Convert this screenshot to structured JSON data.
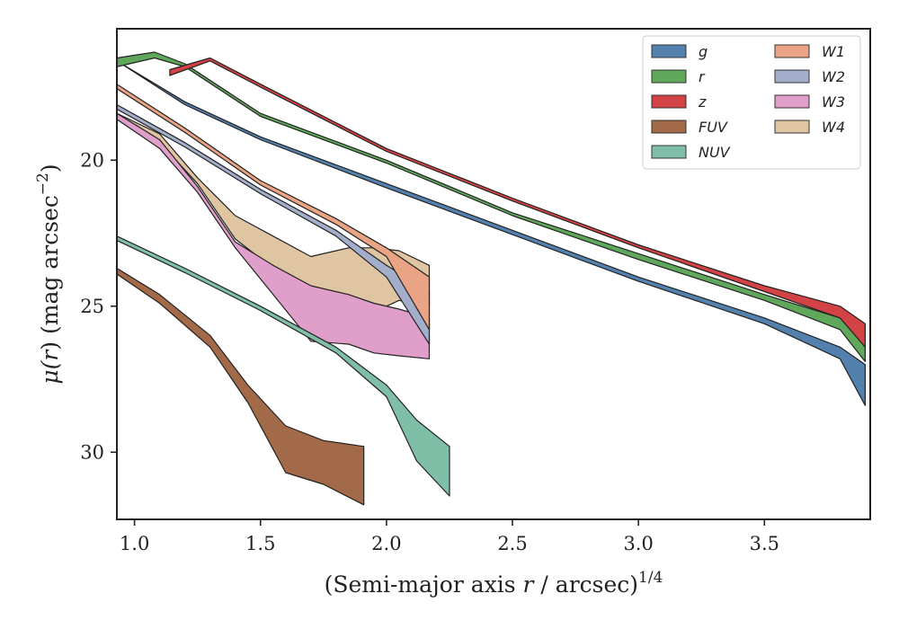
{
  "chart_data": {
    "type": "area",
    "xlabel": "(Semi-major axis r / arcsec)^1/4",
    "xlabel_prefix": "(Semi-major axis ",
    "xlabel_var": "r",
    "xlabel_suffix": " / arcsec)",
    "xlabel_power": "1/4",
    "ylabel": "μ(r) (mag arcsec^−2)",
    "ylabel_mu": "μ(",
    "ylabel_var": "r",
    "ylabel_rest": ") (mag arcsec",
    "ylabel_power": "−2",
    "ylabel_close": ")",
    "xlim": [
      0.93,
      3.92
    ],
    "ylim": [
      32.3,
      15.5
    ],
    "y_inverted": true,
    "grid": false,
    "legend_position": "top-right",
    "legend_columns": 2,
    "xticks": [
      1.0,
      1.5,
      2.0,
      2.5,
      3.0,
      3.5
    ],
    "xtick_labels": [
      "1.0",
      "1.5",
      "2.0",
      "2.5",
      "3.0",
      "3.5"
    ],
    "yticks": [
      20,
      25,
      30
    ],
    "ytick_labels": [
      "20",
      "25",
      "30"
    ],
    "series": [
      {
        "name": "W4",
        "color": "#dfc5a2",
        "upper": [
          [
            0.93,
            18.4
          ],
          [
            1.1,
            19.1
          ],
          [
            1.25,
            20.6
          ],
          [
            1.4,
            21.9
          ],
          [
            1.55,
            22.6
          ],
          [
            1.7,
            23.3
          ],
          [
            1.85,
            23.0
          ],
          [
            1.95,
            23.0
          ],
          [
            2.05,
            23.1
          ],
          [
            2.17,
            23.6
          ]
        ],
        "lower": [
          [
            0.93,
            18.6
          ],
          [
            1.1,
            19.4
          ],
          [
            1.25,
            20.8
          ],
          [
            1.4,
            22.7
          ],
          [
            1.55,
            23.7
          ],
          [
            1.7,
            24.4
          ],
          [
            1.85,
            24.6
          ],
          [
            1.95,
            25.2
          ],
          [
            2.05,
            24.8
          ],
          [
            2.17,
            25.0
          ]
        ]
      },
      {
        "name": "W3",
        "color": "#e09fca",
        "upper": [
          [
            0.93,
            18.4
          ],
          [
            1.1,
            19.3
          ],
          [
            1.25,
            20.9
          ],
          [
            1.4,
            22.8
          ],
          [
            1.55,
            23.6
          ],
          [
            1.7,
            24.3
          ],
          [
            1.85,
            24.6
          ],
          [
            1.95,
            24.9
          ],
          [
            2.05,
            25.1
          ],
          [
            2.17,
            25.4
          ]
        ],
        "lower": [
          [
            0.93,
            18.6
          ],
          [
            1.1,
            19.6
          ],
          [
            1.25,
            21.1
          ],
          [
            1.4,
            23.0
          ],
          [
            1.55,
            24.6
          ],
          [
            1.7,
            26.2
          ],
          [
            1.85,
            26.3
          ],
          [
            1.95,
            26.6
          ],
          [
            2.05,
            26.7
          ],
          [
            2.17,
            26.8
          ]
        ]
      },
      {
        "name": "W2",
        "color": "#a3aecb",
        "upper": [
          [
            0.93,
            18.1
          ],
          [
            1.2,
            19.4
          ],
          [
            1.5,
            21.0
          ],
          [
            1.8,
            22.4
          ],
          [
            2.0,
            23.6
          ],
          [
            2.17,
            24.5
          ]
        ],
        "lower": [
          [
            0.93,
            18.25
          ],
          [
            1.2,
            19.55
          ],
          [
            1.5,
            21.15
          ],
          [
            1.8,
            22.6
          ],
          [
            2.0,
            24.0
          ],
          [
            2.17,
            26.3
          ]
        ]
      },
      {
        "name": "W1",
        "color": "#e9a385",
        "upper": [
          [
            0.93,
            17.4
          ],
          [
            1.2,
            18.9
          ],
          [
            1.5,
            20.7
          ],
          [
            1.8,
            22.0
          ],
          [
            2.0,
            23.0
          ],
          [
            2.17,
            24.0
          ]
        ],
        "lower": [
          [
            0.93,
            17.55
          ],
          [
            1.2,
            19.05
          ],
          [
            1.5,
            20.85
          ],
          [
            1.8,
            22.2
          ],
          [
            2.0,
            23.3
          ],
          [
            2.17,
            25.8
          ]
        ]
      },
      {
        "name": "NUV",
        "color": "#7fbfa8",
        "upper": [
          [
            0.93,
            22.6
          ],
          [
            1.2,
            23.7
          ],
          [
            1.5,
            25.0
          ],
          [
            1.8,
            26.4
          ],
          [
            2.0,
            27.7
          ],
          [
            2.12,
            28.9
          ],
          [
            2.25,
            29.8
          ]
        ],
        "lower": [
          [
            0.93,
            22.75
          ],
          [
            1.2,
            23.85
          ],
          [
            1.5,
            25.15
          ],
          [
            1.8,
            26.6
          ],
          [
            2.0,
            28.1
          ],
          [
            2.12,
            30.3
          ],
          [
            2.25,
            31.5
          ]
        ]
      },
      {
        "name": "FUV",
        "color": "#a26a48",
        "upper": [
          [
            0.93,
            23.7
          ],
          [
            1.1,
            24.6
          ],
          [
            1.3,
            26.0
          ],
          [
            1.45,
            27.7
          ],
          [
            1.6,
            29.1
          ],
          [
            1.75,
            29.6
          ],
          [
            1.91,
            29.8
          ]
        ],
        "lower": [
          [
            0.93,
            23.9
          ],
          [
            1.1,
            24.9
          ],
          [
            1.3,
            26.4
          ],
          [
            1.45,
            28.3
          ],
          [
            1.6,
            30.7
          ],
          [
            1.75,
            31.1
          ],
          [
            1.91,
            31.8
          ]
        ]
      },
      {
        "name": "g",
        "color": "#5381ad",
        "upper": [
          [
            0.93,
            16.6
          ],
          [
            1.2,
            18.0
          ],
          [
            1.5,
            19.2
          ],
          [
            2.0,
            20.8
          ],
          [
            2.5,
            22.4
          ],
          [
            3.0,
            24.0
          ],
          [
            3.5,
            25.4
          ],
          [
            3.8,
            26.4
          ],
          [
            3.9,
            27.0
          ]
        ],
        "lower": [
          [
            0.93,
            16.6
          ],
          [
            1.2,
            18.1
          ],
          [
            1.5,
            19.3
          ],
          [
            2.0,
            20.95
          ],
          [
            2.5,
            22.55
          ],
          [
            3.0,
            24.15
          ],
          [
            3.5,
            25.6
          ],
          [
            3.8,
            26.8
          ],
          [
            3.9,
            28.4
          ]
        ]
      },
      {
        "name": "r",
        "color": "#5fa85b",
        "upper": [
          [
            0.93,
            16.5
          ],
          [
            1.08,
            16.3
          ],
          [
            1.2,
            16.7
          ],
          [
            1.5,
            18.4
          ],
          [
            2.0,
            20.0
          ],
          [
            2.5,
            21.8
          ],
          [
            3.0,
            23.2
          ],
          [
            3.5,
            24.6
          ],
          [
            3.8,
            25.4
          ],
          [
            3.9,
            25.9
          ]
        ],
        "lower": [
          [
            0.93,
            16.8
          ],
          [
            1.08,
            16.5
          ],
          [
            1.2,
            16.8
          ],
          [
            1.5,
            18.5
          ],
          [
            2.0,
            20.1
          ],
          [
            2.5,
            21.9
          ],
          [
            3.0,
            23.4
          ],
          [
            3.5,
            24.8
          ],
          [
            3.8,
            25.8
          ],
          [
            3.9,
            26.9
          ]
        ]
      },
      {
        "name": "z",
        "color": "#d34244",
        "upper": [
          [
            1.14,
            16.9
          ],
          [
            1.3,
            16.5
          ],
          [
            1.5,
            17.4
          ],
          [
            2.0,
            19.6
          ],
          [
            2.5,
            21.3
          ],
          [
            3.0,
            22.9
          ],
          [
            3.5,
            24.3
          ],
          [
            3.8,
            25.0
          ],
          [
            3.9,
            25.6
          ]
        ],
        "lower": [
          [
            1.14,
            17.1
          ],
          [
            1.3,
            16.6
          ],
          [
            1.5,
            17.5
          ],
          [
            2.0,
            19.7
          ],
          [
            2.5,
            21.4
          ],
          [
            3.0,
            23.0
          ],
          [
            3.5,
            24.5
          ],
          [
            3.8,
            25.4
          ],
          [
            3.9,
            26.4
          ]
        ]
      }
    ],
    "legend": [
      {
        "label": "g",
        "color": "#5381ad"
      },
      {
        "label": "r",
        "color": "#5fa85b"
      },
      {
        "label": "z",
        "color": "#d34244"
      },
      {
        "label": "FUV",
        "color": "#a26a48"
      },
      {
        "label": "NUV",
        "color": "#7fbfa8"
      },
      {
        "label": "W1",
        "color": "#e9a385"
      },
      {
        "label": "W2",
        "color": "#a3aecb"
      },
      {
        "label": "W3",
        "color": "#e09fca"
      },
      {
        "label": "W4",
        "color": "#dfc5a2"
      }
    ]
  }
}
